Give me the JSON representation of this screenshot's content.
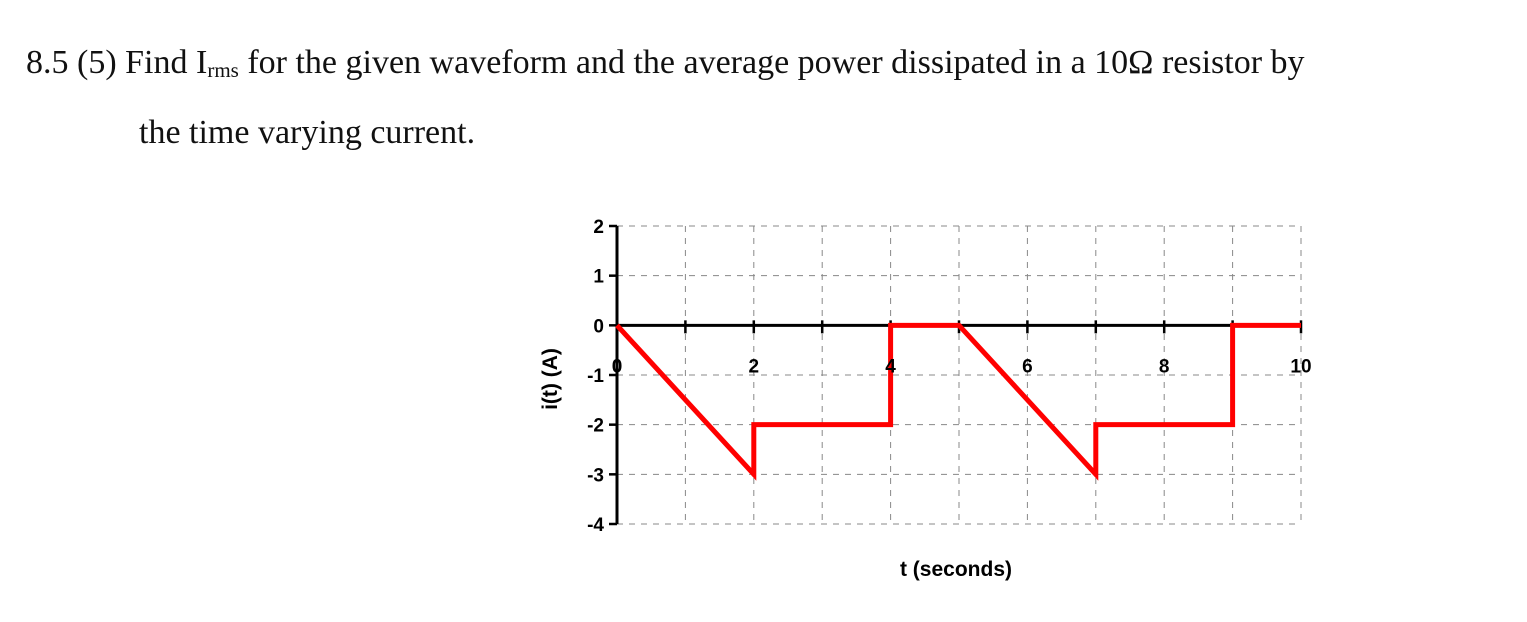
{
  "question": {
    "prefix": "8.5 (5) Find I",
    "subscript": "rms",
    "suffix": " for the given waveform and the average power dissipated in a 10Ω resistor by",
    "line2": "the time varying current."
  },
  "chart_data": {
    "type": "line",
    "title": "",
    "xlabel": "t (seconds)",
    "ylabel": "i(t) (A)",
    "xlim": [
      0,
      10
    ],
    "ylim": [
      -4,
      2
    ],
    "x_ticks": [
      0,
      2,
      4,
      6,
      8,
      10
    ],
    "x_tick_labels": [
      "0",
      "2",
      "4",
      "6",
      "8",
      "10"
    ],
    "y_ticks": [
      2,
      1,
      0,
      -1,
      -2,
      -3,
      -4
    ],
    "y_tick_labels": [
      "2",
      "1",
      "0",
      "-1",
      "-2",
      "-3",
      "-4"
    ],
    "grid": true,
    "legend": "none",
    "series": [
      {
        "color": "#ff0000",
        "x": [
          0,
          2,
          2,
          4,
          4,
          5,
          7,
          7,
          9,
          9,
          10
        ],
        "y": [
          0,
          -3,
          -2,
          -2,
          0,
          0,
          -3,
          -2,
          -2,
          0,
          0
        ]
      }
    ]
  }
}
